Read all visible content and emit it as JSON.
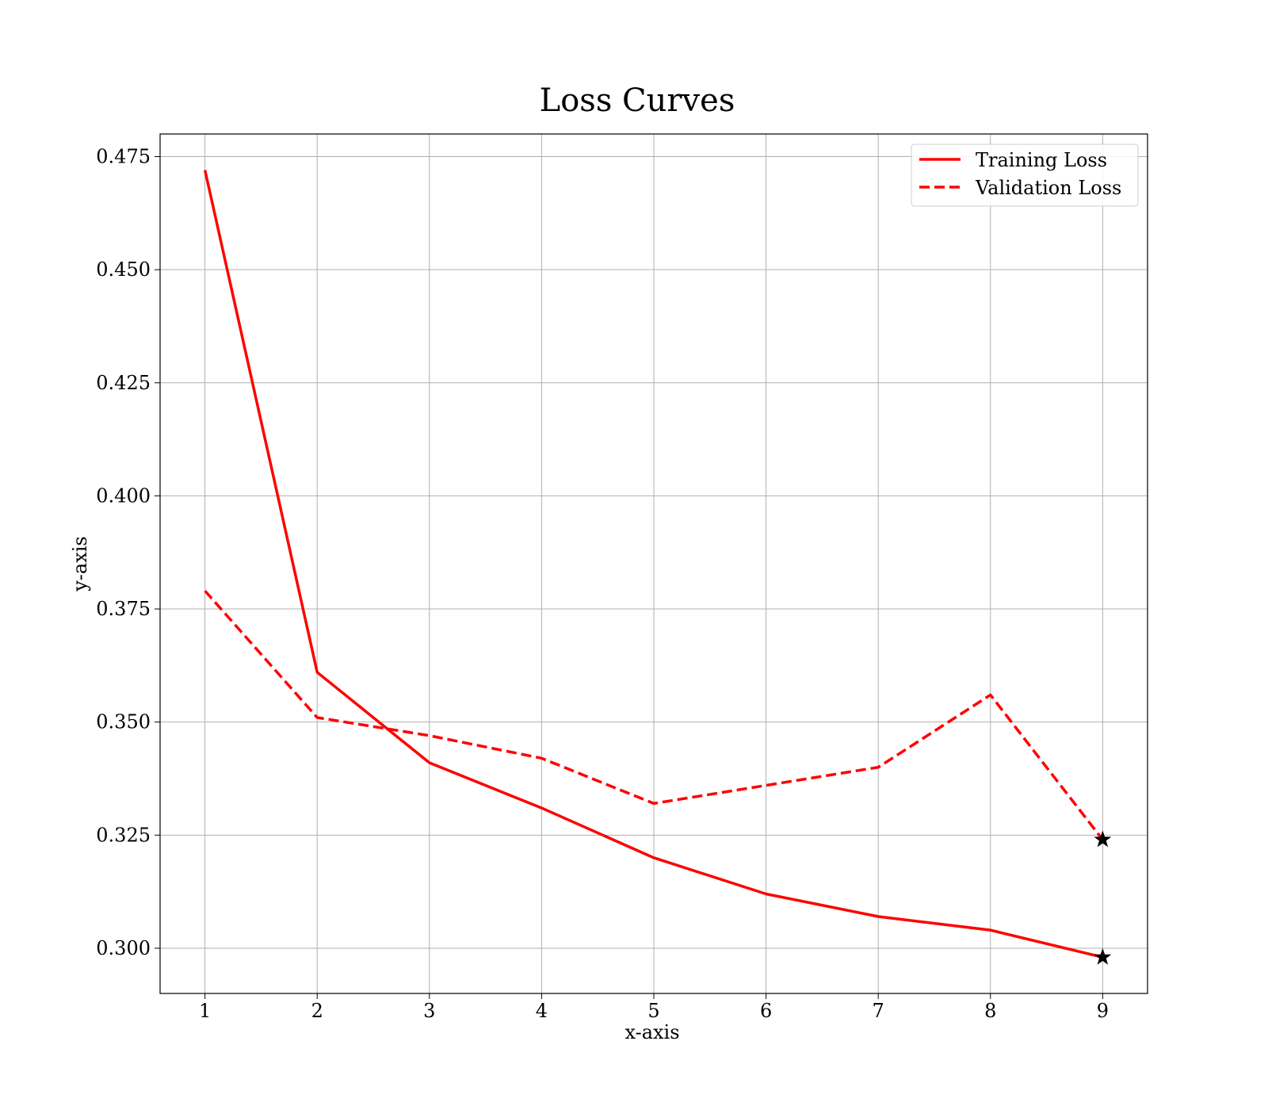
{
  "chart_data": {
    "type": "line",
    "title": "Loss Curves",
    "xlabel": "x-axis",
    "ylabel": "y-axis",
    "x": [
      1,
      2,
      3,
      4,
      5,
      6,
      7,
      8,
      9
    ],
    "xticks": [
      "1",
      "2",
      "3",
      "4",
      "5",
      "6",
      "7",
      "8",
      "9"
    ],
    "yticks": [
      "0.300",
      "0.325",
      "0.350",
      "0.375",
      "0.400",
      "0.425",
      "0.450",
      "0.475"
    ],
    "xlim": [
      0.6,
      9.4
    ],
    "ylim": [
      0.29,
      0.48
    ],
    "grid": true,
    "legend_position": "top-right",
    "series": [
      {
        "name": "Training Loss",
        "style": "solid",
        "color": "#ff0000",
        "values": [
          0.472,
          0.361,
          0.341,
          0.331,
          0.32,
          0.312,
          0.307,
          0.304,
          0.298
        ],
        "end_marker": "star"
      },
      {
        "name": "Validation Loss",
        "style": "dashed",
        "color": "#ff0000",
        "values": [
          0.379,
          0.351,
          0.347,
          0.342,
          0.332,
          0.336,
          0.34,
          0.356,
          0.324
        ],
        "end_marker": "star"
      }
    ],
    "marker_color": "#000000"
  }
}
